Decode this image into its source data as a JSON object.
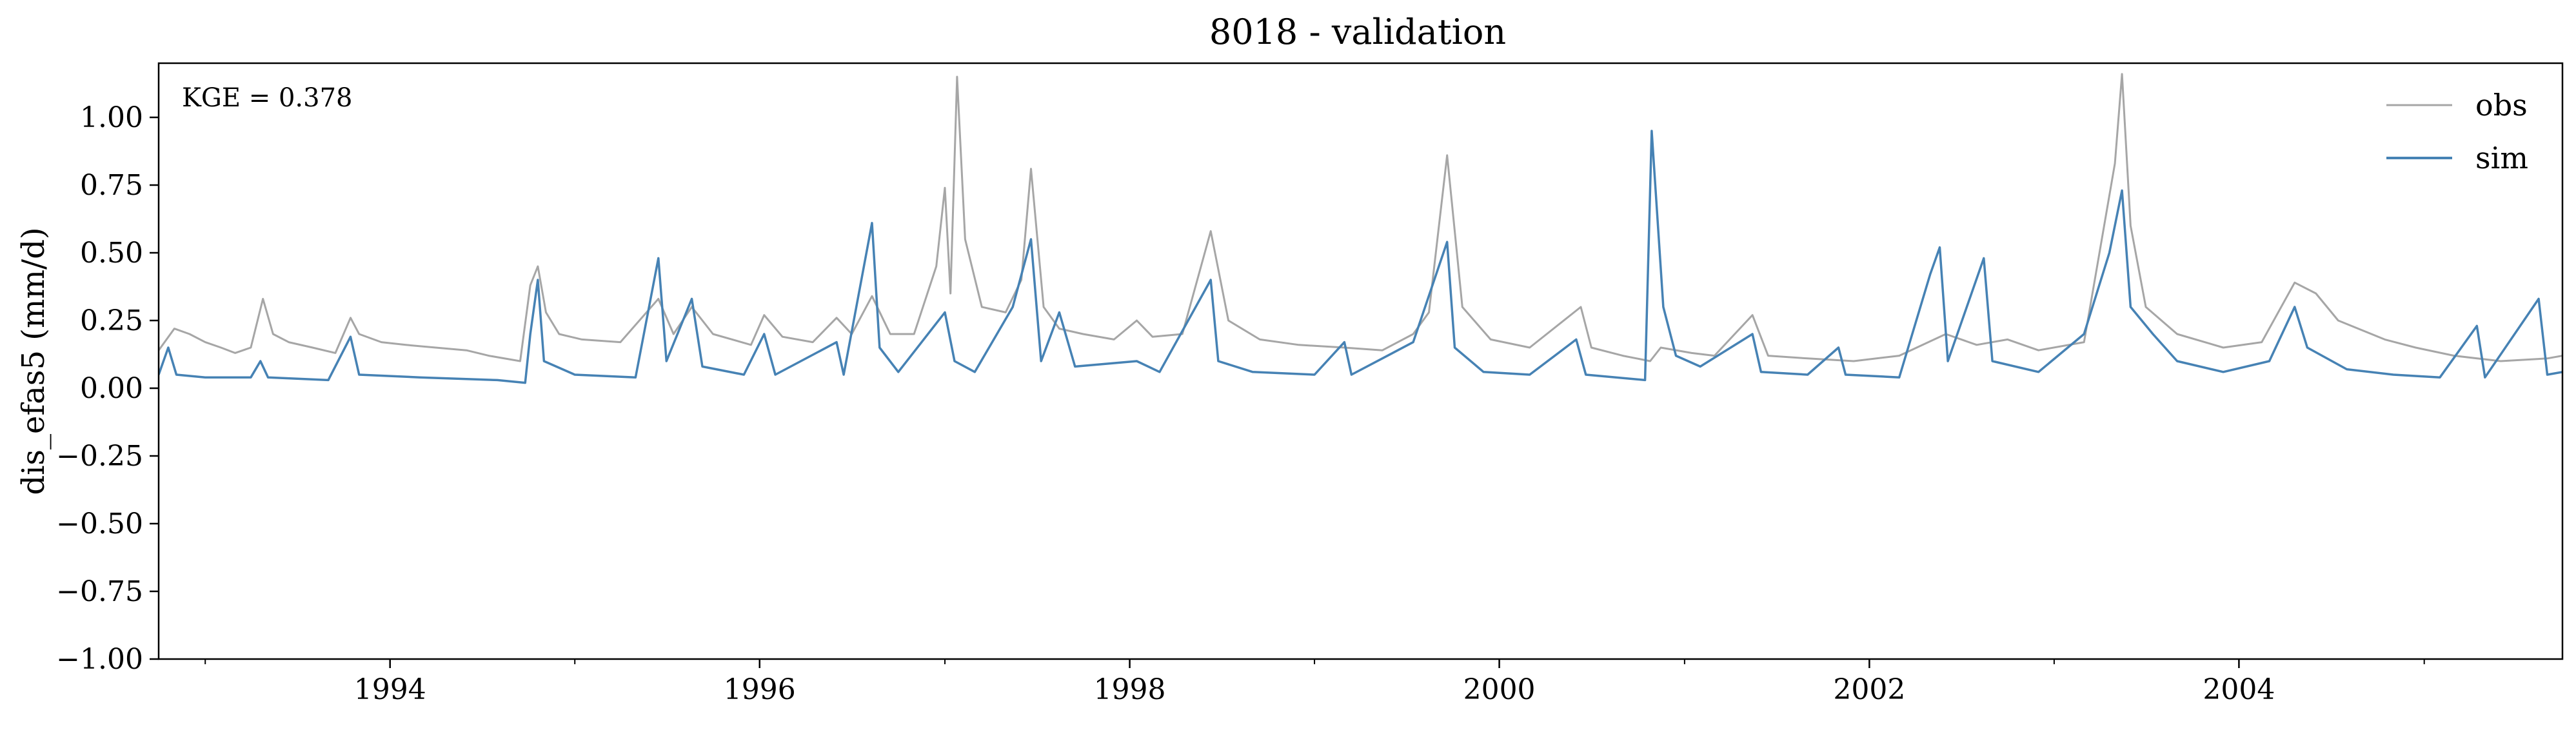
{
  "chart_data": {
    "type": "line",
    "title": "8018 - validation",
    "xlabel": "",
    "ylabel": "dis_efas5 (mm/d)",
    "annotation": "KGE = 0.378",
    "xlim": [
      "1992-10-01",
      "2005-10-01"
    ],
    "ylim": [
      -1.0,
      1.2
    ],
    "yticks": [
      -1.0,
      -0.75,
      -0.5,
      -0.25,
      0.0,
      0.25,
      0.5,
      0.75,
      1.0
    ],
    "ytick_labels": [
      "−1.00",
      "−0.75",
      "−0.50",
      "−0.25",
      "0.00",
      "0.25",
      "0.50",
      "0.75",
      "1.00"
    ],
    "xticks": [
      "1994-01-01",
      "1996-01-01",
      "1998-01-01",
      "2000-01-01",
      "2002-01-01",
      "2004-01-01"
    ],
    "xtick_labels": [
      "1994",
      "1996",
      "1998",
      "2000",
      "2002",
      "2004"
    ],
    "grid": false,
    "legend_position": "top-right",
    "series": [
      {
        "name": "obs",
        "color": "#a6a6a6",
        "points": [
          [
            "1992-10-01",
            0.14
          ],
          [
            "1992-11-01",
            0.22
          ],
          [
            "1992-12-01",
            0.2
          ],
          [
            "1993-01-01",
            0.17
          ],
          [
            "1993-02-01",
            0.15
          ],
          [
            "1993-03-01",
            0.13
          ],
          [
            "1993-04-01",
            0.15
          ],
          [
            "1993-04-25",
            0.33
          ],
          [
            "1993-05-15",
            0.2
          ],
          [
            "1993-06-15",
            0.17
          ],
          [
            "1993-08-01",
            0.15
          ],
          [
            "1993-09-15",
            0.13
          ],
          [
            "1993-10-15",
            0.26
          ],
          [
            "1993-11-01",
            0.2
          ],
          [
            "1993-12-15",
            0.17
          ],
          [
            "1994-02-01",
            0.16
          ],
          [
            "1994-04-01",
            0.15
          ],
          [
            "1994-06-01",
            0.14
          ],
          [
            "1994-07-15",
            0.12
          ],
          [
            "1994-09-15",
            0.1
          ],
          [
            "1994-10-05",
            0.38
          ],
          [
            "1994-10-20",
            0.45
          ],
          [
            "1994-11-05",
            0.28
          ],
          [
            "1994-12-01",
            0.2
          ],
          [
            "1995-01-15",
            0.18
          ],
          [
            "1995-04-01",
            0.17
          ],
          [
            "1995-06-15",
            0.33
          ],
          [
            "1995-07-15",
            0.2
          ],
          [
            "1995-08-20",
            0.3
          ],
          [
            "1995-10-01",
            0.2
          ],
          [
            "1995-12-15",
            0.16
          ],
          [
            "1996-01-10",
            0.27
          ],
          [
            "1996-02-15",
            0.19
          ],
          [
            "1996-04-15",
            0.17
          ],
          [
            "1996-06-01",
            0.26
          ],
          [
            "1996-07-01",
            0.2
          ],
          [
            "1996-08-10",
            0.34
          ],
          [
            "1996-09-15",
            0.2
          ],
          [
            "1996-11-01",
            0.2
          ],
          [
            "1996-12-15",
            0.45
          ],
          [
            "1997-01-01",
            0.74
          ],
          [
            "1997-01-12",
            0.35
          ],
          [
            "1997-01-25",
            1.15
          ],
          [
            "1997-02-10",
            0.55
          ],
          [
            "1997-03-15",
            0.3
          ],
          [
            "1997-05-01",
            0.28
          ],
          [
            "1997-06-01",
            0.4
          ],
          [
            "1997-06-20",
            0.81
          ],
          [
            "1997-07-15",
            0.3
          ],
          [
            "1997-08-15",
            0.22
          ],
          [
            "1997-10-01",
            0.2
          ],
          [
            "1997-12-01",
            0.18
          ],
          [
            "1998-01-15",
            0.25
          ],
          [
            "1998-02-15",
            0.19
          ],
          [
            "1998-04-15",
            0.2
          ],
          [
            "1998-06-10",
            0.58
          ],
          [
            "1998-07-15",
            0.25
          ],
          [
            "1998-09-15",
            0.18
          ],
          [
            "1998-12-01",
            0.16
          ],
          [
            "1999-03-01",
            0.15
          ],
          [
            "1999-05-15",
            0.14
          ],
          [
            "1999-07-15",
            0.2
          ],
          [
            "1999-08-15",
            0.28
          ],
          [
            "1999-09-20",
            0.86
          ],
          [
            "1999-10-20",
            0.3
          ],
          [
            "1999-12-15",
            0.18
          ],
          [
            "2000-03-01",
            0.15
          ],
          [
            "2000-06-10",
            0.3
          ],
          [
            "2000-07-01",
            0.15
          ],
          [
            "2000-09-01",
            0.12
          ],
          [
            "2000-10-25",
            0.1
          ],
          [
            "2000-11-15",
            0.15
          ],
          [
            "2001-01-15",
            0.13
          ],
          [
            "2001-03-01",
            0.12
          ],
          [
            "2001-05-15",
            0.27
          ],
          [
            "2001-06-15",
            0.12
          ],
          [
            "2001-09-01",
            0.11
          ],
          [
            "2001-12-01",
            0.1
          ],
          [
            "2002-03-01",
            0.12
          ],
          [
            "2002-06-01",
            0.2
          ],
          [
            "2002-08-01",
            0.16
          ],
          [
            "2002-10-01",
            0.18
          ],
          [
            "2002-12-01",
            0.14
          ],
          [
            "2003-03-01",
            0.17
          ],
          [
            "2003-05-01",
            0.83
          ],
          [
            "2003-05-15",
            1.16
          ],
          [
            "2003-06-01",
            0.6
          ],
          [
            "2003-07-01",
            0.3
          ],
          [
            "2003-09-01",
            0.2
          ],
          [
            "2003-12-01",
            0.15
          ],
          [
            "2004-02-15",
            0.17
          ],
          [
            "2004-04-20",
            0.39
          ],
          [
            "2004-06-01",
            0.35
          ],
          [
            "2004-07-15",
            0.25
          ],
          [
            "2004-10-15",
            0.18
          ],
          [
            "2004-12-15",
            0.15
          ],
          [
            "2005-03-01",
            0.12
          ],
          [
            "2005-06-01",
            0.1
          ],
          [
            "2005-09-01",
            0.11
          ],
          [
            "2005-10-01",
            0.12
          ]
        ]
      },
      {
        "name": "sim",
        "color": "#4682b4",
        "points": [
          [
            "1992-10-01",
            0.05
          ],
          [
            "1992-10-20",
            0.15
          ],
          [
            "1992-11-05",
            0.05
          ],
          [
            "1993-01-01",
            0.04
          ],
          [
            "1993-04-01",
            0.04
          ],
          [
            "1993-04-20",
            0.1
          ],
          [
            "1993-05-05",
            0.04
          ],
          [
            "1993-09-01",
            0.03
          ],
          [
            "1993-10-15",
            0.19
          ],
          [
            "1993-11-01",
            0.05
          ],
          [
            "1994-03-01",
            0.04
          ],
          [
            "1994-08-01",
            0.03
          ],
          [
            "1994-09-25",
            0.02
          ],
          [
            "1994-10-05",
            0.2
          ],
          [
            "1994-10-20",
            0.4
          ],
          [
            "1994-11-01",
            0.1
          ],
          [
            "1995-01-01",
            0.05
          ],
          [
            "1995-05-01",
            0.04
          ],
          [
            "1995-06-15",
            0.48
          ],
          [
            "1995-07-01",
            0.1
          ],
          [
            "1995-08-20",
            0.33
          ],
          [
            "1995-09-10",
            0.08
          ],
          [
            "1995-12-01",
            0.05
          ],
          [
            "1996-01-10",
            0.2
          ],
          [
            "1996-02-01",
            0.05
          ],
          [
            "1996-06-01",
            0.17
          ],
          [
            "1996-06-15",
            0.05
          ],
          [
            "1996-08-10",
            0.61
          ],
          [
            "1996-08-25",
            0.15
          ],
          [
            "1996-10-01",
            0.06
          ],
          [
            "1997-01-01",
            0.28
          ],
          [
            "1997-01-20",
            0.1
          ],
          [
            "1997-03-01",
            0.06
          ],
          [
            "1997-05-15",
            0.3
          ],
          [
            "1997-06-20",
            0.55
          ],
          [
            "1997-07-10",
            0.1
          ],
          [
            "1997-08-15",
            0.28
          ],
          [
            "1997-09-15",
            0.08
          ],
          [
            "1998-01-15",
            0.1
          ],
          [
            "1998-03-01",
            0.06
          ],
          [
            "1998-06-10",
            0.4
          ],
          [
            "1998-06-25",
            0.1
          ],
          [
            "1998-09-01",
            0.06
          ],
          [
            "1999-01-01",
            0.05
          ],
          [
            "1999-03-01",
            0.17
          ],
          [
            "1999-03-15",
            0.05
          ],
          [
            "1999-07-15",
            0.17
          ],
          [
            "1999-09-20",
            0.54
          ],
          [
            "1999-10-05",
            0.15
          ],
          [
            "1999-12-01",
            0.06
          ],
          [
            "2000-03-01",
            0.05
          ],
          [
            "2000-06-01",
            0.18
          ],
          [
            "2000-06-20",
            0.05
          ],
          [
            "2000-10-15",
            0.03
          ],
          [
            "2000-10-28",
            0.95
          ],
          [
            "2000-11-20",
            0.3
          ],
          [
            "2000-12-15",
            0.12
          ],
          [
            "2001-02-01",
            0.08
          ],
          [
            "2001-05-15",
            0.2
          ],
          [
            "2001-06-01",
            0.06
          ],
          [
            "2001-09-01",
            0.05
          ],
          [
            "2001-11-01",
            0.15
          ],
          [
            "2001-11-15",
            0.05
          ],
          [
            "2002-03-01",
            0.04
          ],
          [
            "2002-05-01",
            0.42
          ],
          [
            "2002-05-20",
            0.52
          ],
          [
            "2002-06-05",
            0.1
          ],
          [
            "2002-08-15",
            0.48
          ],
          [
            "2002-09-01",
            0.1
          ],
          [
            "2002-12-01",
            0.06
          ],
          [
            "2003-03-01",
            0.2
          ],
          [
            "2003-04-20",
            0.5
          ],
          [
            "2003-05-15",
            0.73
          ],
          [
            "2003-06-01",
            0.3
          ],
          [
            "2003-07-15",
            0.2
          ],
          [
            "2003-09-01",
            0.1
          ],
          [
            "2003-12-01",
            0.06
          ],
          [
            "2004-03-01",
            0.1
          ],
          [
            "2004-04-20",
            0.3
          ],
          [
            "2004-05-15",
            0.15
          ],
          [
            "2004-08-01",
            0.07
          ],
          [
            "2004-11-01",
            0.05
          ],
          [
            "2005-02-01",
            0.04
          ],
          [
            "2005-04-15",
            0.23
          ],
          [
            "2005-05-01",
            0.04
          ],
          [
            "2005-08-15",
            0.33
          ],
          [
            "2005-09-01",
            0.05
          ],
          [
            "2005-10-01",
            0.06
          ]
        ]
      }
    ]
  }
}
